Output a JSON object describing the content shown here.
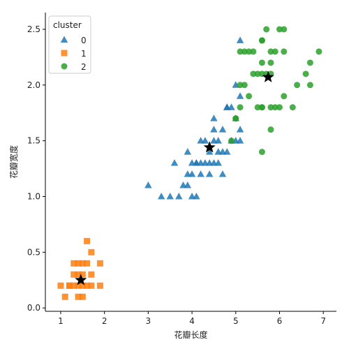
{
  "chart_data": {
    "type": "scatter",
    "xlabel": "花瓣长度",
    "ylabel": "花瓣宽度",
    "xlim": [
      0.65,
      7.3
    ],
    "ylim": [
      -0.03,
      2.65
    ],
    "xticks": [
      1,
      2,
      3,
      4,
      5,
      6,
      7
    ],
    "yticks": [
      0.0,
      0.5,
      1.0,
      1.5,
      2.0,
      2.5
    ],
    "ytick_labels": [
      "0.0",
      "0.5",
      "1.0",
      "1.5",
      "2.0",
      "2.5"
    ],
    "grid": false,
    "legend": {
      "title": "cluster",
      "position": "top-left"
    },
    "series": [
      {
        "name": "0",
        "marker": "triangle",
        "color": "#1f77b4",
        "points": [
          [
            3.0,
            1.1
          ],
          [
            3.3,
            1.0
          ],
          [
            3.5,
            1.0
          ],
          [
            3.6,
            1.3
          ],
          [
            3.7,
            1.0
          ],
          [
            3.8,
            1.1
          ],
          [
            3.9,
            1.1
          ],
          [
            3.9,
            1.2
          ],
          [
            3.9,
            1.4
          ],
          [
            4.0,
            1.0
          ],
          [
            4.0,
            1.2
          ],
          [
            4.0,
            1.3
          ],
          [
            4.1,
            1.0
          ],
          [
            4.1,
            1.3
          ],
          [
            4.2,
            1.2
          ],
          [
            4.2,
            1.3
          ],
          [
            4.2,
            1.5
          ],
          [
            4.3,
            1.3
          ],
          [
            4.4,
            1.2
          ],
          [
            4.4,
            1.3
          ],
          [
            4.4,
            1.4
          ],
          [
            4.5,
            1.3
          ],
          [
            4.5,
            1.5
          ],
          [
            4.6,
            1.3
          ],
          [
            4.6,
            1.4
          ],
          [
            4.7,
            1.2
          ],
          [
            4.7,
            1.4
          ],
          [
            4.7,
            1.6
          ],
          [
            4.8,
            1.4
          ],
          [
            4.8,
            1.8
          ],
          [
            4.5,
            1.6
          ],
          [
            4.5,
            1.7
          ],
          [
            4.9,
            1.5
          ],
          [
            4.9,
            1.8
          ],
          [
            5.0,
            1.5
          ],
          [
            5.0,
            1.7
          ],
          [
            5.0,
            2.0
          ],
          [
            5.1,
            1.5
          ],
          [
            5.1,
            1.6
          ],
          [
            5.1,
            1.9
          ],
          [
            5.1,
            2.4
          ],
          [
            4.3,
            1.5
          ],
          [
            4.6,
            1.5
          ],
          [
            4.8,
            1.8
          ],
          [
            4.1,
            1.3
          ]
        ]
      },
      {
        "name": "1",
        "marker": "square",
        "color": "#ff7f0e",
        "points": [
          [
            1.0,
            0.2
          ],
          [
            1.1,
            0.1
          ],
          [
            1.2,
            0.2
          ],
          [
            1.3,
            0.2
          ],
          [
            1.3,
            0.3
          ],
          [
            1.3,
            0.4
          ],
          [
            1.4,
            0.1
          ],
          [
            1.4,
            0.2
          ],
          [
            1.4,
            0.3
          ],
          [
            1.5,
            0.1
          ],
          [
            1.5,
            0.2
          ],
          [
            1.5,
            0.4
          ],
          [
            1.6,
            0.2
          ],
          [
            1.6,
            0.4
          ],
          [
            1.6,
            0.6
          ],
          [
            1.7,
            0.2
          ],
          [
            1.7,
            0.3
          ],
          [
            1.7,
            0.5
          ],
          [
            1.9,
            0.2
          ],
          [
            1.9,
            0.4
          ],
          [
            1.4,
            0.4
          ],
          [
            1.5,
            0.3
          ],
          [
            1.2,
            0.2
          ]
        ]
      },
      {
        "name": "2",
        "marker": "circle",
        "color": "#2ca02c",
        "points": [
          [
            4.9,
            1.5
          ],
          [
            5.0,
            1.7
          ],
          [
            5.1,
            2.3
          ],
          [
            5.2,
            2.3
          ],
          [
            5.3,
            2.3
          ],
          [
            5.4,
            2.3
          ],
          [
            5.5,
            2.1
          ],
          [
            5.6,
            2.1
          ],
          [
            5.7,
            2.1
          ],
          [
            5.8,
            2.1
          ],
          [
            5.6,
            2.2
          ],
          [
            5.8,
            2.2
          ],
          [
            5.4,
            2.1
          ],
          [
            5.6,
            2.4
          ],
          [
            5.6,
            2.4
          ],
          [
            5.7,
            2.5
          ],
          [
            5.8,
            2.3
          ],
          [
            5.9,
            2.3
          ],
          [
            6.0,
            2.5
          ],
          [
            6.1,
            2.5
          ],
          [
            6.1,
            2.3
          ],
          [
            6.0,
            1.8
          ],
          [
            6.1,
            1.9
          ],
          [
            6.3,
            1.8
          ],
          [
            5.1,
            1.8
          ],
          [
            5.5,
            1.8
          ],
          [
            5.6,
            1.8
          ],
          [
            5.8,
            1.8
          ],
          [
            5.9,
            1.8
          ],
          [
            5.6,
            1.4
          ],
          [
            5.8,
            1.6
          ],
          [
            5.1,
            2.0
          ],
          [
            5.2,
            2.0
          ],
          [
            5.6,
            1.8
          ],
          [
            5.0,
            1.7
          ],
          [
            6.4,
            2.0
          ],
          [
            6.6,
            2.1
          ],
          [
            6.7,
            2.0
          ],
          [
            6.7,
            2.2
          ],
          [
            6.9,
            2.3
          ],
          [
            5.3,
            1.9
          ]
        ]
      }
    ],
    "centroids": [
      [
        4.4,
        1.44
      ],
      [
        1.46,
        0.25
      ],
      [
        5.74,
        2.07
      ]
    ],
    "centroid_marker": "star",
    "centroid_color": "#000000"
  }
}
